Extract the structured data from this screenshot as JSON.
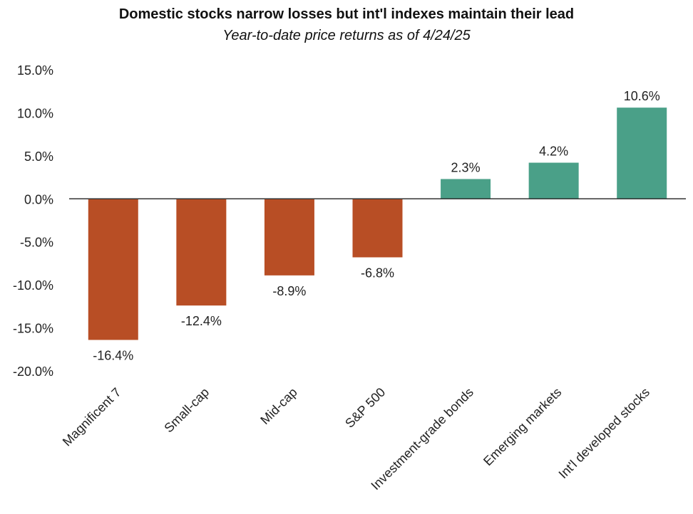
{
  "chart_data": {
    "type": "bar",
    "title": "Domestic stocks narrow losses but int'l indexes maintain their lead",
    "subtitle": "Year-to-date price returns as of 4/24/25",
    "xlabel": "",
    "ylabel": "",
    "categories": [
      "Magnificent 7",
      "Small-cap",
      "Mid-cap",
      "S&P 500",
      "Investment-grade bonds",
      "Emerging markets",
      "Int'l developed stocks"
    ],
    "values": [
      -16.4,
      -12.4,
      -8.9,
      -6.8,
      2.3,
      4.2,
      10.6
    ],
    "value_labels": [
      "-16.4%",
      "-12.4%",
      "-8.9%",
      "-6.8%",
      "2.3%",
      "4.2%",
      "10.6%"
    ],
    "ylim": [
      -20,
      15
    ],
    "yticks": [
      15,
      10,
      5,
      0,
      -5,
      -10,
      -15,
      -20
    ],
    "ytick_labels": [
      "15.0%",
      "10.0%",
      "5.0%",
      "0.0%",
      "-5.0%",
      "-10.0%",
      "-15.0%",
      "-20.0%"
    ],
    "grid": false,
    "legend": "none",
    "colors": {
      "negative": "#B84E25",
      "positive": "#4AA088",
      "axis": "#333333"
    }
  }
}
